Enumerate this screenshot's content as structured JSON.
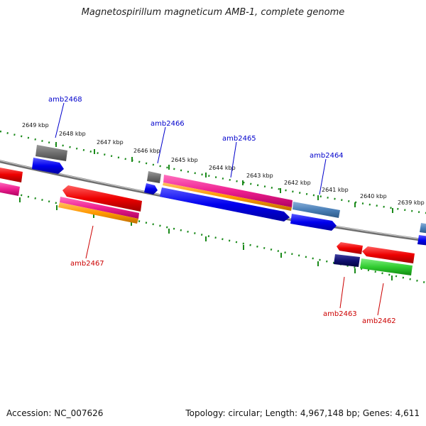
{
  "title": "Magnetospirillum magneticum AMB-1, complete genome",
  "footer": {
    "accession": "Accession: NC_007626",
    "topology": "Topology: circular; Length: 4,967,148 bp; Genes: 4,611"
  },
  "kbp_ticks": [
    "2649 kbp",
    "2648 kbp",
    "2647 kbp",
    "2646 kbp",
    "2645 kbp",
    "2644 kbp",
    "2643 kbp",
    "2642 kbp",
    "2641 kbp",
    "2640 kbp",
    "2639 kbp"
  ],
  "colors": {
    "forward_label": "#0000cc",
    "reverse_label": "#cc0000",
    "backbone": "#808080",
    "tick": "#1a8a1a"
  },
  "genes": [
    {
      "name": "amb2468",
      "strand": "forward"
    },
    {
      "name": "amb2466",
      "strand": "forward"
    },
    {
      "name": "amb2465",
      "strand": "forward"
    },
    {
      "name": "amb2464",
      "strand": "forward"
    },
    {
      "name": "amb2467",
      "strand": "reverse"
    },
    {
      "name": "amb2463",
      "strand": "reverse"
    },
    {
      "name": "amb2462",
      "strand": "reverse"
    }
  ]
}
